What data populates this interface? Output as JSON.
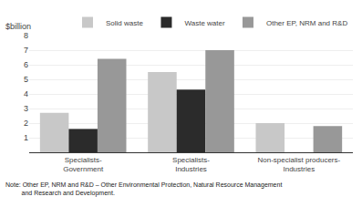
{
  "chart_data": {
    "type": "bar",
    "ylabel": "$billion",
    "categories": [
      "Specialists-\nGovernment",
      "Specialists-\nIndustries",
      "Non-specialist producers-\nIndustries"
    ],
    "series": [
      {
        "name": "Solid waste",
        "color": "#c8c8c8",
        "values": [
          2.7,
          5.5,
          2.0
        ]
      },
      {
        "name": "Waste water",
        "color": "#2b2b2b",
        "values": [
          1.6,
          4.3,
          0.0
        ]
      },
      {
        "name": "Other EP, NRM and R&D",
        "color": "#989898",
        "values": [
          6.4,
          7.0,
          1.8
        ]
      }
    ],
    "ylim": [
      0,
      8
    ],
    "yticks": [
      1,
      2,
      3,
      4,
      5,
      6,
      7,
      8
    ],
    "grid": true,
    "legend": "upper right",
    "annotations": [
      "Note: Other EP, NRM and R&D – Other Environmental Protection, Natural Resource Management\n         and Research and Development."
    ]
  }
}
